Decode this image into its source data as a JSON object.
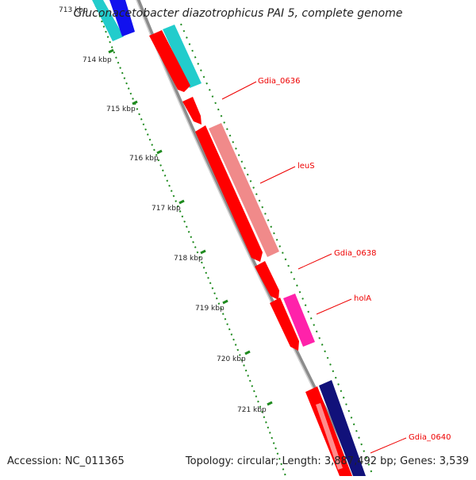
{
  "title": "Gluconacetobacter diazotrophicus PAI 5, complete genome",
  "footer": {
    "accession": "Accession: NC_011365",
    "summary": "Topology: circular; Length: 3,887,492 bp; Genes: 3,539"
  },
  "ticks": [
    "713 kbp",
    "714 kbp",
    "715 kbp",
    "716 kbp",
    "717 kbp",
    "718 kbp",
    "719 kbp",
    "720 kbp",
    "721 kbp"
  ],
  "gene_labels": [
    "Gdia_0636",
    "leuS",
    "Gdia_0638",
    "holA",
    "Gdia_0640"
  ],
  "colors": {
    "backbone": "#8c8c8c",
    "red": "#ff0000",
    "cyan": "#22cccc",
    "blue": "#1111ee",
    "salmon": "#f08a8a",
    "magenta": "#ff22aa",
    "navy": "#11117a",
    "dots": "#1e8a1e",
    "label": "#ee0000"
  }
}
